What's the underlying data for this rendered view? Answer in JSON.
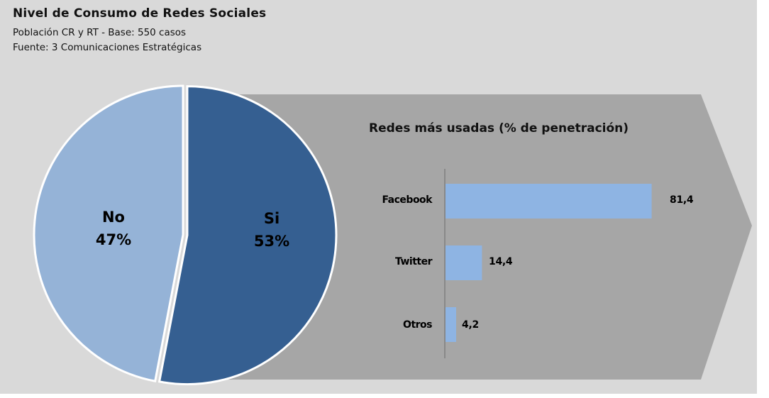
{
  "header": {
    "title": "Nivel de Consumo de Redes Sociales",
    "subtitle1": "Población CR y RT - Base: 550 casos",
    "subtitle2": "Fuente: 3 Comunicaciones Estratégicas"
  },
  "pie": {
    "slices": [
      {
        "label": "No",
        "percent": "47%",
        "value": 47,
        "color": "#95b3d7"
      },
      {
        "label": "Si",
        "percent": "53%",
        "value": 53,
        "color": "#355f91"
      }
    ]
  },
  "bars": {
    "title": "Redes más usadas (% de penetración)",
    "items": [
      {
        "label": "Facebook",
        "value_label": "81,4",
        "value": 81.4
      },
      {
        "label": "Twitter",
        "value_label": "14,4",
        "value": 14.4
      },
      {
        "label": "Otros",
        "value_label": "4,2",
        "value": 4.2
      }
    ],
    "bar_color": "#8eb4e3"
  },
  "colors": {
    "background": "#d9d9d9",
    "arrow": "#a6a6a6"
  },
  "chart_data": [
    {
      "type": "pie",
      "title": "Nivel de Consumo de Redes Sociales",
      "subtitle": [
        "Población CR y RT - Base: 550 casos",
        "Fuente: 3 Comunicaciones Estratégicas"
      ],
      "labels": [
        "No",
        "Si"
      ],
      "values": [
        47,
        53
      ],
      "colors": [
        "#95b3d7",
        "#355f91"
      ],
      "data_labels": [
        "No 47%",
        "Si 53%"
      ]
    },
    {
      "type": "bar",
      "orientation": "horizontal",
      "title": "Redes más usadas (% de penetración)",
      "categories": [
        "Facebook",
        "Twitter",
        "Otros"
      ],
      "values": [
        81.4,
        14.4,
        4.2
      ],
      "data_labels": [
        "81,4",
        "14,4",
        "4,2"
      ],
      "xlabel": "",
      "ylabel": "",
      "grid": false,
      "legend": null,
      "color": "#8eb4e3"
    }
  ]
}
